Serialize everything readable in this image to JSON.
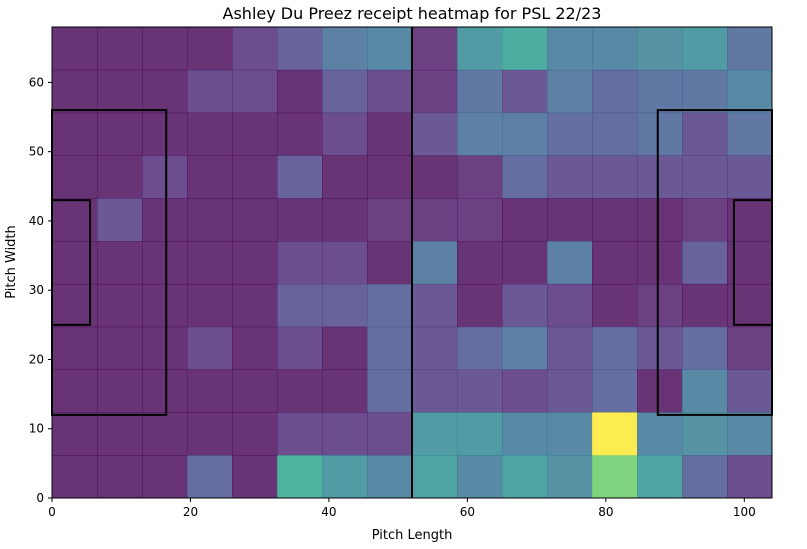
{
  "chart_data": {
    "type": "heatmap",
    "title": "Ashley Du Preez receipt heatmap for PSL 22/23",
    "xlabel": "Pitch Length",
    "ylabel": "Pitch Width",
    "xlim": [
      0,
      104
    ],
    "ylim": [
      0,
      68
    ],
    "x_ticks": [
      0,
      20,
      40,
      60,
      80,
      100
    ],
    "y_ticks": [
      0,
      10,
      20,
      30,
      40,
      50,
      60
    ],
    "grid": false,
    "bins_x": 16,
    "bins_y": 11,
    "colormap": "viridis",
    "values_normalized_top_to_bottom": [
      [
        0.0,
        0.0,
        0.0,
        0.0,
        0.1,
        0.2,
        0.35,
        0.4,
        0.05,
        0.5,
        0.6,
        0.4,
        0.4,
        0.45,
        0.5,
        0.3
      ],
      [
        0.0,
        0.0,
        0.0,
        0.1,
        0.1,
        0.0,
        0.2,
        0.1,
        0.05,
        0.3,
        0.15,
        0.35,
        0.25,
        0.3,
        0.3,
        0.4
      ],
      [
        0.0,
        0.0,
        0.0,
        0.0,
        0.0,
        0.0,
        0.1,
        0.0,
        0.15,
        0.35,
        0.35,
        0.25,
        0.25,
        0.3,
        0.15,
        0.3
      ],
      [
        0.0,
        0.0,
        0.1,
        0.0,
        0.0,
        0.2,
        0.0,
        0.0,
        0.0,
        0.05,
        0.25,
        0.15,
        0.15,
        0.15,
        0.15,
        0.15
      ],
      [
        0.0,
        0.15,
        0.0,
        0.0,
        0.0,
        0.0,
        0.0,
        0.05,
        0.05,
        0.05,
        0.0,
        0.0,
        0.0,
        0.0,
        0.05,
        0.0
      ],
      [
        0.0,
        0.0,
        0.0,
        0.0,
        0.0,
        0.1,
        0.1,
        0.0,
        0.35,
        0.0,
        0.0,
        0.35,
        0.0,
        0.0,
        0.2,
        0.0
      ],
      [
        0.0,
        0.0,
        0.0,
        0.0,
        0.0,
        0.2,
        0.2,
        0.25,
        0.15,
        0.0,
        0.15,
        0.1,
        0.0,
        0.05,
        0.0,
        0.0
      ],
      [
        0.0,
        0.0,
        0.0,
        0.1,
        0.0,
        0.1,
        0.0,
        0.25,
        0.15,
        0.25,
        0.35,
        0.15,
        0.25,
        0.15,
        0.25,
        0.05
      ],
      [
        0.0,
        0.0,
        0.0,
        0.0,
        0.0,
        0.0,
        0.0,
        0.25,
        0.15,
        0.15,
        0.1,
        0.15,
        0.25,
        0.0,
        0.4,
        0.15
      ],
      [
        0.0,
        0.0,
        0.0,
        0.0,
        0.0,
        0.1,
        0.1,
        0.1,
        0.5,
        0.5,
        0.4,
        0.4,
        1.0,
        0.4,
        0.45,
        0.4
      ],
      [
        0.0,
        0.0,
        0.0,
        0.25,
        0.0,
        0.65,
        0.5,
        0.4,
        0.55,
        0.4,
        0.55,
        0.45,
        0.85,
        0.55,
        0.25,
        0.1
      ]
    ],
    "pitch_lines": {
      "halfway_x": 52,
      "left_penalty_box": {
        "x": [
          0,
          16.5
        ],
        "y": [
          12,
          56
        ]
      },
      "left_six_yard_box": {
        "x": [
          0,
          5.5
        ],
        "y": [
          25,
          43
        ]
      },
      "right_penalty_box": {
        "x": [
          87.5,
          104
        ],
        "y": [
          12,
          56
        ]
      },
      "right_six_yard_box": {
        "x": [
          98.5,
          104
        ],
        "y": [
          25,
          43
        ]
      }
    }
  }
}
